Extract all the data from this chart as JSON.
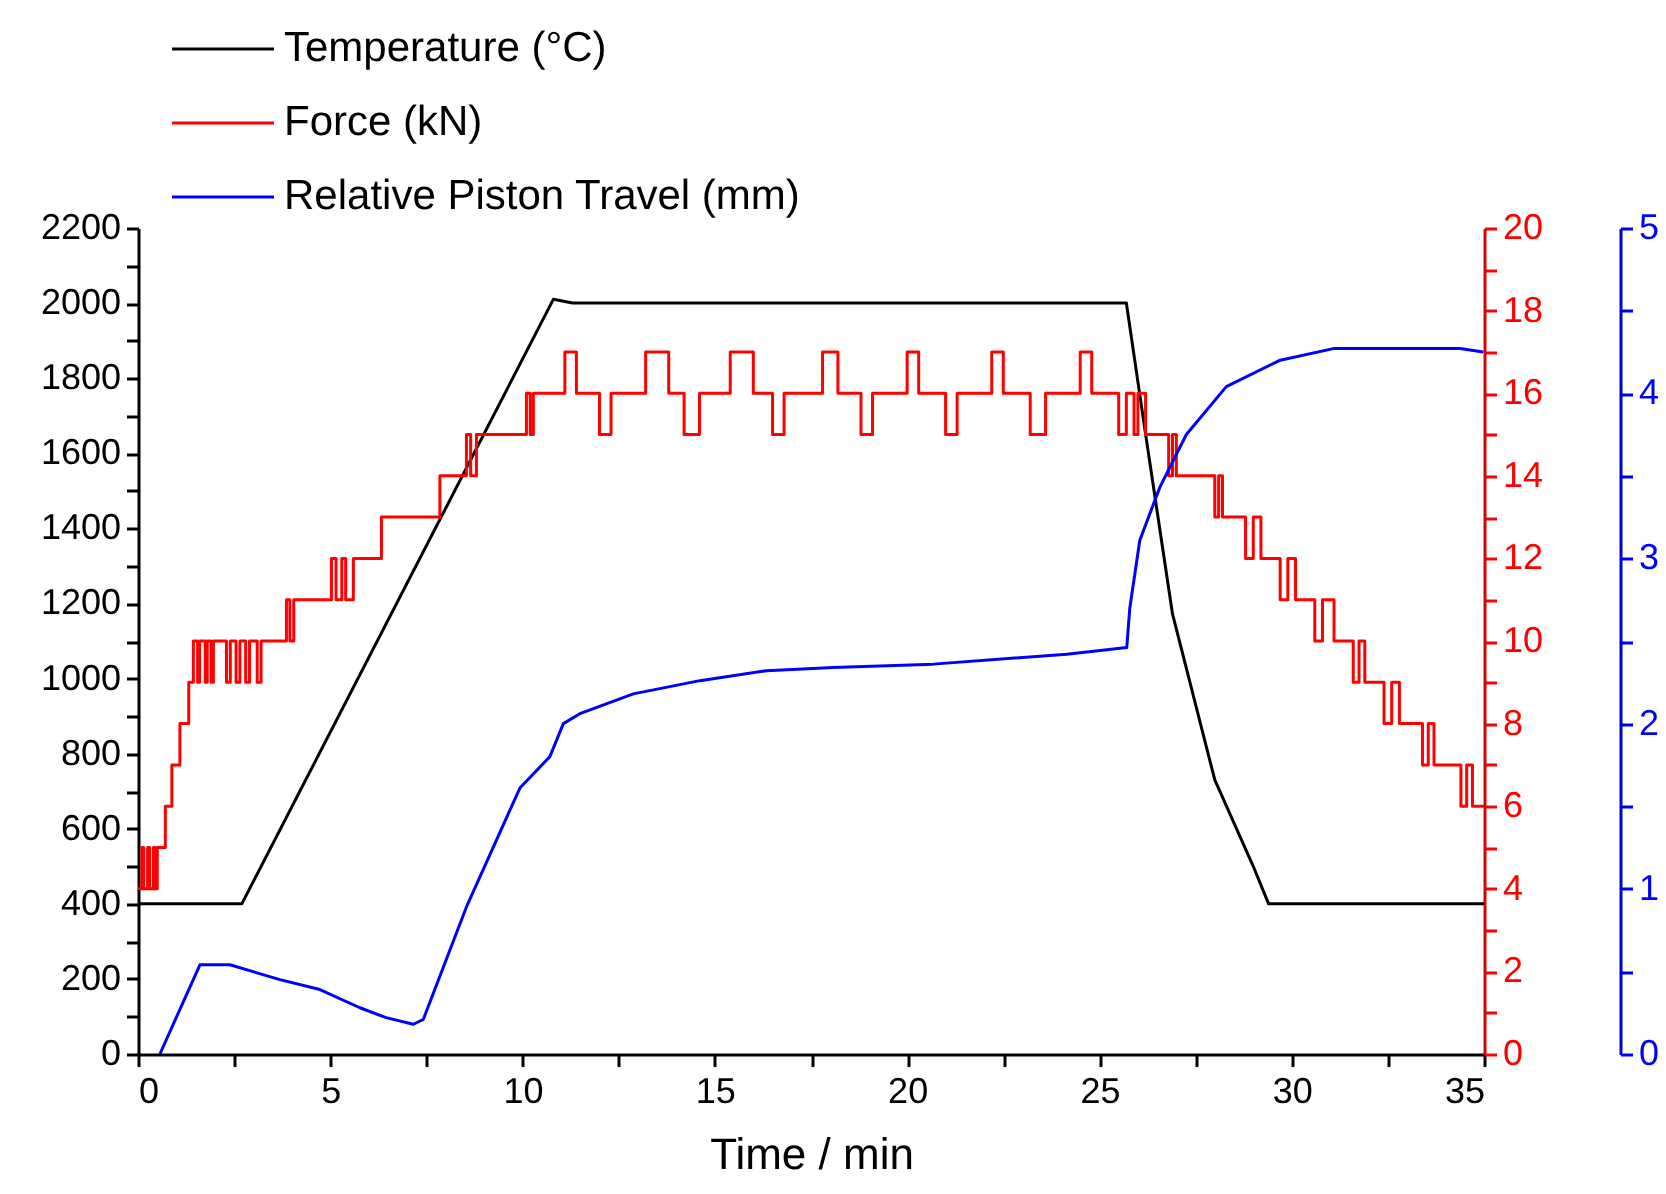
{
  "chart_data": {
    "type": "line",
    "xlabel": "Time / min",
    "legend": "top left",
    "grid": false,
    "xlim": [
      0,
      35
    ],
    "xticks": [
      0,
      {
        "value": 2.5,
        "label": null
      },
      5,
      {
        "value": 7.5,
        "label": null
      },
      10,
      {
        "value": 12.5,
        "label": null
      },
      15,
      {
        "value": 17.5,
        "label": null
      },
      20,
      {
        "value": 22.5,
        "label": null
      },
      25,
      {
        "value": 27.5,
        "label": null
      },
      30,
      {
        "value": 32.5,
        "label": null
      },
      35
    ],
    "ylim": [
      0,
      2200
    ],
    "yticks": [
      0,
      {
        "value": 100,
        "label": null
      },
      200,
      {
        "value": 300,
        "label": null
      },
      400,
      {
        "value": 500,
        "label": null
      },
      600,
      {
        "value": 700,
        "label": null
      },
      800,
      {
        "value": 900,
        "label": null
      },
      1000,
      {
        "value": 1100,
        "label": null
      },
      1200,
      {
        "value": 1300,
        "label": null
      },
      1400,
      {
        "value": 1500,
        "label": null
      },
      1600,
      {
        "value": 1700,
        "label": null
      },
      1800,
      {
        "value": 1900,
        "label": null
      },
      2000,
      {
        "value": 2100,
        "label": null
      },
      2200
    ],
    "y2lim": [
      0,
      20
    ],
    "y2ticks": [
      0,
      {
        "value": 1,
        "label": null
      },
      2,
      {
        "value": 3,
        "label": null
      },
      4,
      {
        "value": 5,
        "label": null
      },
      6,
      {
        "value": 7,
        "label": null
      },
      8,
      {
        "value": 9,
        "label": null
      },
      10,
      {
        "value": 11,
        "label": null
      },
      12,
      {
        "value": 13,
        "label": null
      },
      14,
      {
        "value": 15,
        "label": null
      },
      16,
      {
        "value": 17,
        "label": null
      },
      18,
      {
        "value": 19,
        "label": null
      },
      20
    ],
    "y3lim": [
      0,
      5
    ],
    "y3ticks": [
      0,
      {
        "value": 0.5,
        "label": null
      },
      1,
      {
        "value": 1.5,
        "label": null
      },
      2,
      {
        "value": 2.5,
        "label": null
      },
      3,
      {
        "value": 3.5,
        "label": null
      },
      4,
      {
        "value": 4.5,
        "label": null
      },
      5
    ],
    "series": [
      {
        "name": "Temperature (°C)",
        "color": "#000000",
        "x": [
          0,
          2.7,
          10.8,
          11.3,
          25.7,
          26.2,
          26.9,
          28.0,
          29.0,
          29.4,
          35
        ],
        "values": [
          400,
          400,
          2010,
          2000,
          2000,
          1651,
          1172,
          730,
          500,
          400,
          400
        ]
      },
      {
        "name": "Force (kN)",
        "color": "#ff0000",
        "type": "step",
        "axis": "y2",
        "x": [
          0,
          0.1,
          0.15,
          0.25,
          0.3,
          0.4,
          0.45,
          0.5,
          0.71,
          0.88,
          1.09,
          1.32,
          1.44,
          1.55,
          1.6,
          1.75,
          1.8,
          1.9,
          1.96,
          2.3,
          2.4,
          2.55,
          2.65,
          2.8,
          2.9,
          3.1,
          3.2,
          3.86,
          3.95,
          4.05,
          5.03,
          5.15,
          5.3,
          5.4,
          5.6,
          6.33,
          7.85,
          8.54,
          8.65,
          8.8,
          10.1,
          10.2,
          10.28,
          11.1,
          11.4,
          12.0,
          12.3,
          13.2,
          13.8,
          14.2,
          14.6,
          15.4,
          16.0,
          16.5,
          16.8,
          17.8,
          18.2,
          18.8,
          19.1,
          20.0,
          20.3,
          21.0,
          21.3,
          22.2,
          22.5,
          23.2,
          23.6,
          24.5,
          24.8,
          25.5,
          25.7,
          25.9,
          26.0,
          26.2,
          26.8,
          26.9,
          27.0,
          28.0,
          28.1,
          28.2,
          28.8,
          29.0,
          29.2,
          29.7,
          29.9,
          30.1,
          30.6,
          30.8,
          31.1,
          31.6,
          31.75,
          31.9,
          32.4,
          32.6,
          32.8,
          33.4,
          33.55,
          33.7,
          34.4,
          34.55,
          34.7,
          35
        ],
        "values": [
          4,
          5,
          4,
          5,
          4,
          5,
          4,
          5,
          6,
          7,
          8,
          9,
          10,
          9,
          10,
          9,
          10,
          9,
          10,
          9,
          10,
          9,
          10,
          9,
          10,
          9,
          10,
          11,
          10,
          11,
          12,
          11,
          12,
          11,
          12,
          13,
          14,
          15,
          14,
          15,
          16,
          15,
          16,
          17,
          16,
          15,
          16,
          17,
          16,
          15,
          16,
          17,
          16,
          15,
          16,
          17,
          16,
          15,
          16,
          17,
          16,
          15,
          16,
          17,
          16,
          15,
          16,
          17,
          16,
          15,
          16,
          15,
          16,
          15,
          14,
          15,
          14,
          13,
          14,
          13,
          12,
          13,
          12,
          11,
          12,
          11,
          10,
          11,
          10,
          9,
          10,
          9,
          8,
          9,
          8,
          7,
          8,
          7,
          6,
          7,
          6,
          6
        ]
      },
      {
        "name": "Relative Piston Travel (mm)",
        "color": "#0000ff",
        "axis": "y3",
        "x": [
          0.57,
          1.61,
          2.39,
          3.69,
          4.73,
          5.77,
          6.45,
          7.16,
          7.42,
          8.54,
          9.93,
          10.71,
          11.06,
          11.49,
          12.88,
          14.61,
          16.34,
          18.08,
          20.68,
          24.15,
          25.71,
          25.79,
          26.05,
          26.57,
          27.26,
          28.3,
          29.7,
          31.08,
          34.38,
          34.98
        ],
        "values": [
          0,
          0.54,
          0.54,
          0.45,
          0.39,
          0.28,
          0.22,
          0.18,
          0.21,
          0.89,
          1.61,
          1.8,
          2.0,
          2.06,
          2.18,
          2.26,
          2.32,
          2.34,
          2.36,
          2.42,
          2.46,
          2.7,
          3.11,
          3.43,
          3.75,
          4.04,
          4.2,
          4.27,
          4.27,
          4.25
        ]
      }
    ]
  }
}
